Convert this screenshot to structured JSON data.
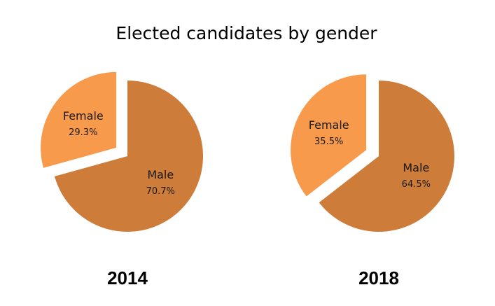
{
  "chart_data": {
    "type": "pie",
    "title": "Elected candidates by gender",
    "pies": [
      {
        "label": "2014",
        "slices": [
          {
            "name": "Female",
            "value": 29.3,
            "value_label": "29.3%",
            "exploded": true
          },
          {
            "name": "Male",
            "value": 70.7,
            "value_label": "70.7%",
            "exploded": false
          }
        ]
      },
      {
        "label": "2018",
        "slices": [
          {
            "name": "Female",
            "value": 35.5,
            "value_label": "35.5%",
            "exploded": true
          },
          {
            "name": "Male",
            "value": 64.5,
            "value_label": "64.5%",
            "exploded": false
          }
        ]
      }
    ],
    "colors": {
      "Female": "#f79a4c",
      "Male": "#cd7c3a"
    },
    "legend": "none"
  }
}
